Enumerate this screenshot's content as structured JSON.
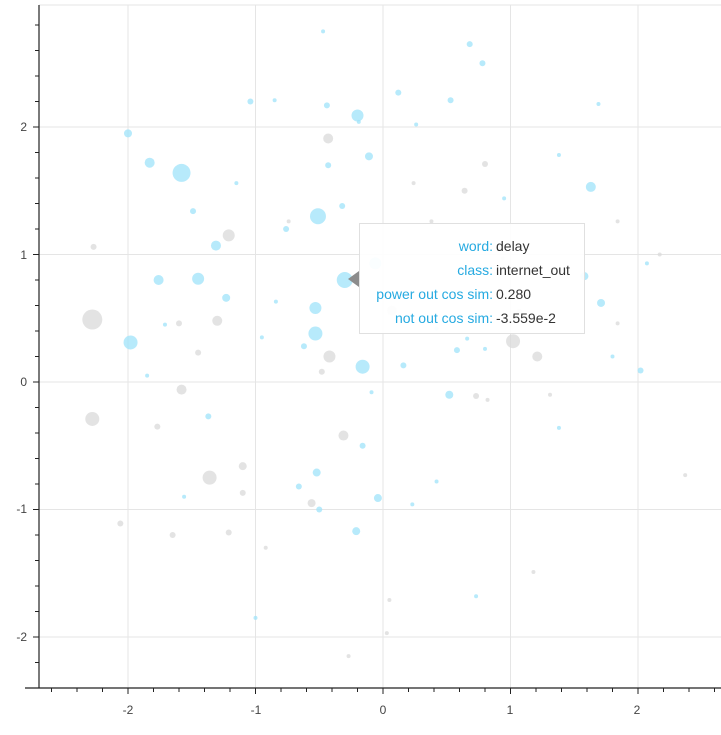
{
  "chart_data": {
    "type": "scatter",
    "title": "",
    "xlabel": "",
    "ylabel": "",
    "xlim": [
      -2.7,
      2.65
    ],
    "ylim": [
      -2.4,
      2.95
    ],
    "grid": true,
    "x_ticks": [
      "-2",
      "-1",
      "0",
      "1",
      "2"
    ],
    "y_ticks": [
      "2",
      "1",
      "0",
      "-1",
      "-2"
    ],
    "colors": {
      "blue": "#9fe3fa",
      "gray": "#d9d9d9"
    },
    "series": [
      {
        "name": "blue",
        "points": [
          [
            -1.58,
            1.64,
            9
          ],
          [
            -0.51,
            1.3,
            8
          ],
          [
            -1.98,
            0.31,
            7
          ],
          [
            -0.3,
            0.8,
            8
          ],
          [
            -0.53,
            0.38,
            7
          ],
          [
            -0.16,
            0.12,
            7
          ],
          [
            -0.2,
            2.09,
            6
          ],
          [
            -1.83,
            1.72,
            5
          ],
          [
            -1.45,
            0.81,
            6
          ],
          [
            -1.31,
            1.07,
            5
          ],
          [
            1.63,
            1.53,
            5
          ],
          [
            -0.53,
            0.58,
            6
          ],
          [
            -0.06,
            0.93,
            6
          ],
          [
            -1.76,
            0.8,
            5
          ],
          [
            -2.0,
            1.95,
            4
          ],
          [
            -1.23,
            0.66,
            4
          ],
          [
            -0.11,
            1.77,
            4
          ],
          [
            1.58,
            0.83,
            4
          ],
          [
            1.71,
            0.62,
            4
          ],
          [
            2.02,
            0.09,
            3
          ],
          [
            -0.43,
            1.7,
            3
          ],
          [
            0.52,
            -0.1,
            4
          ],
          [
            0.58,
            0.25,
            3
          ],
          [
            0.16,
            0.13,
            3
          ],
          [
            -0.52,
            -0.71,
            4
          ],
          [
            -0.21,
            -1.17,
            4
          ],
          [
            -0.04,
            -0.91,
            4
          ],
          [
            -0.76,
            1.2,
            3
          ],
          [
            -1.49,
            1.34,
            3
          ],
          [
            -1.37,
            -0.27,
            3
          ],
          [
            -0.32,
            1.38,
            3
          ],
          [
            -0.62,
            0.28,
            3
          ],
          [
            -0.66,
            -0.82,
            3
          ],
          [
            0.68,
            2.65,
            3
          ],
          [
            0.12,
            2.27,
            3
          ],
          [
            0.78,
            2.5,
            3
          ],
          [
            -0.44,
            2.17,
            3
          ],
          [
            -1.04,
            2.2,
            3
          ],
          [
            -0.85,
            2.21,
            2
          ],
          [
            0.53,
            2.21,
            3
          ],
          [
            1.69,
            2.18,
            2
          ],
          [
            0.95,
            1.44,
            2
          ],
          [
            -0.19,
            2.04,
            2
          ],
          [
            -0.5,
            -1.0,
            3
          ],
          [
            -0.16,
            -0.5,
            3
          ],
          [
            0.42,
            -0.78,
            2
          ],
          [
            0.23,
            -0.96,
            2
          ],
          [
            0.73,
            -1.68,
            2
          ],
          [
            1.38,
            -0.36,
            2
          ],
          [
            1.8,
            0.2,
            2
          ],
          [
            2.07,
            0.93,
            2
          ],
          [
            -1.71,
            0.45,
            2
          ],
          [
            -1.85,
            0.05,
            2
          ],
          [
            -1.56,
            -0.9,
            2
          ],
          [
            -0.95,
            0.35,
            2
          ],
          [
            -1.15,
            1.56,
            2
          ],
          [
            -0.47,
            2.75,
            2
          ],
          [
            0.26,
            2.02,
            2
          ],
          [
            1.38,
            1.78,
            2
          ],
          [
            -1.0,
            -1.85,
            2
          ],
          [
            -0.09,
            -0.08,
            2
          ],
          [
            0.42,
            0.42,
            2
          ],
          [
            0.8,
            0.26,
            2
          ],
          [
            0.66,
            0.34,
            2
          ],
          [
            1.14,
            0.66,
            2
          ],
          [
            -0.84,
            0.63,
            2
          ]
        ]
      },
      {
        "name": "gray",
        "points": [
          [
            -2.28,
            0.49,
            10
          ],
          [
            -2.28,
            -0.29,
            7
          ],
          [
            -1.36,
            -0.75,
            7
          ],
          [
            -0.42,
            0.2,
            6
          ],
          [
            1.02,
            0.32,
            7
          ],
          [
            1.21,
            0.2,
            5
          ],
          [
            -1.58,
            -0.06,
            5
          ],
          [
            -1.21,
            1.15,
            6
          ],
          [
            -1.3,
            0.48,
            5
          ],
          [
            -0.31,
            -0.42,
            5
          ],
          [
            -0.43,
            1.91,
            5
          ],
          [
            -0.56,
            -0.95,
            4
          ],
          [
            0.07,
            0.56,
            5
          ],
          [
            -1.1,
            -0.66,
            4
          ],
          [
            -1.1,
            -0.87,
            3
          ],
          [
            -1.21,
            -1.18,
            3
          ],
          [
            -1.65,
            -1.2,
            3
          ],
          [
            -2.06,
            -1.11,
            3
          ],
          [
            -1.77,
            -0.35,
            3
          ],
          [
            -1.6,
            0.46,
            3
          ],
          [
            -1.45,
            0.23,
            3
          ],
          [
            -2.27,
            1.06,
            3
          ],
          [
            0.64,
            1.5,
            3
          ],
          [
            0.8,
            1.71,
            3
          ],
          [
            0.94,
            0.97,
            2
          ],
          [
            1.07,
            0.55,
            3
          ],
          [
            0.73,
            -0.11,
            3
          ],
          [
            0.82,
            -0.14,
            2
          ],
          [
            1.18,
            -1.49,
            2
          ],
          [
            1.84,
            0.46,
            2
          ],
          [
            2.17,
            1.0,
            2
          ],
          [
            0.05,
            -1.71,
            2
          ],
          [
            -0.27,
            -2.15,
            2
          ],
          [
            0.03,
            -1.97,
            2
          ],
          [
            0.38,
            1.26,
            2
          ],
          [
            0.24,
            1.56,
            2
          ],
          [
            1.84,
            1.26,
            2
          ],
          [
            1.31,
            -0.1,
            2
          ],
          [
            2.37,
            -0.73,
            2
          ],
          [
            -0.74,
            1.26,
            2
          ],
          [
            -0.48,
            0.08,
            3
          ],
          [
            -0.92,
            -1.3,
            2
          ]
        ]
      }
    ]
  },
  "tooltip": {
    "rows": [
      {
        "label": "word:",
        "value": "delay"
      },
      {
        "label": "class:",
        "value": "internet_out"
      },
      {
        "label": "power out cos sim:",
        "value": "0.280"
      },
      {
        "label": "not out cos sim:",
        "value": "-3.559e-2"
      }
    ]
  }
}
